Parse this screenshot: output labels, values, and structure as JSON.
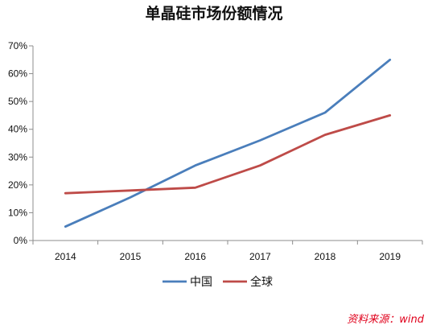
{
  "chart_data": {
    "type": "line",
    "title": "单晶硅市场份额情况",
    "xlabel": "",
    "ylabel": "",
    "categories": [
      "2014",
      "2015",
      "2016",
      "2017",
      "2018",
      "2019"
    ],
    "ylim": [
      0,
      70
    ],
    "yticks": [
      0,
      10,
      20,
      30,
      40,
      50,
      60,
      70
    ],
    "ytick_labels": [
      "0%",
      "10%",
      "20%",
      "30%",
      "40%",
      "50%",
      "60%",
      "70%"
    ],
    "y_unit": "%",
    "grid": false,
    "legend_position": "bottom",
    "series": [
      {
        "name": "中国",
        "color": "#4a7ebb",
        "values": [
          5,
          15.5,
          27,
          36,
          46,
          65
        ]
      },
      {
        "name": "全球",
        "color": "#be4b48",
        "values": [
          17,
          18,
          19,
          27,
          38,
          45
        ]
      }
    ],
    "source_note": "资料来源：wind"
  }
}
